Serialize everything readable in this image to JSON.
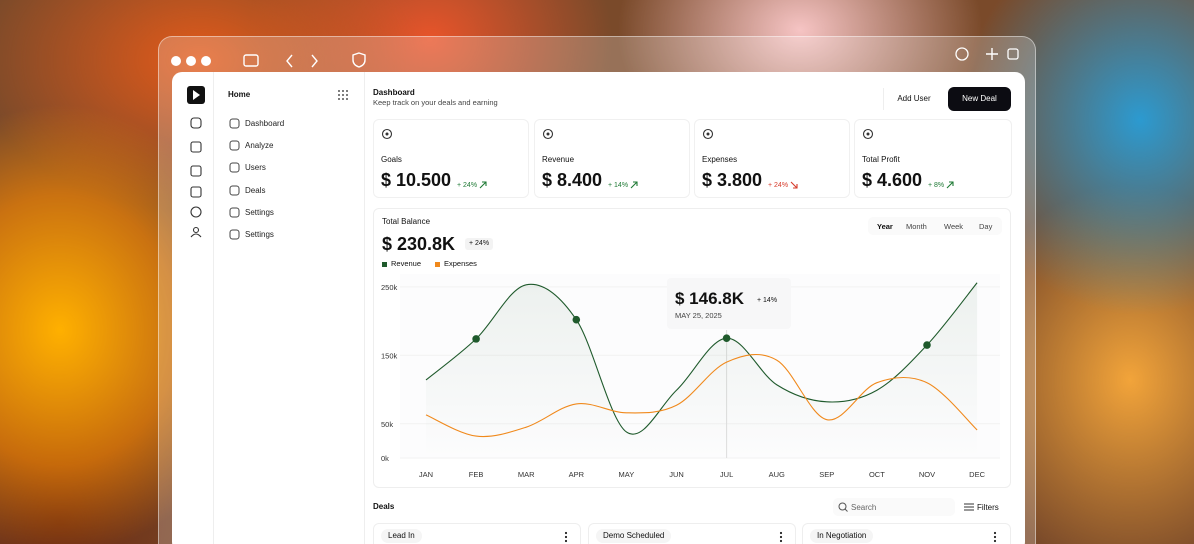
{
  "sidebar": {
    "title": "Home",
    "nav": [
      "Dashboard",
      "Analyze",
      "Users",
      "Deals",
      "Settings",
      "Settings"
    ]
  },
  "header": {
    "title": "Dashboard",
    "subtitle": "Keep track on your deals and earning",
    "buttons": [
      "Add User",
      "New Deal"
    ]
  },
  "stats": [
    {
      "label": "Goals",
      "value": "$ 10.500",
      "change": "+ 24%"
    },
    {
      "label": "Revenue",
      "value": "$ 8.400",
      "change": "+ 14%"
    },
    {
      "label": "Expenses",
      "value": "$ 3.800",
      "change": "+ 24%"
    },
    {
      "label": "Total Profit",
      "value": "$ 4.600",
      "change": "+ 8%"
    }
  ],
  "chart_data": {
    "type": "line",
    "title": "Total Balance",
    "total": "$ 230.8K",
    "total_change": "+ 24%",
    "periods": [
      "Year",
      "Month",
      "Week",
      "Day"
    ],
    "categories": [
      "JAN",
      "FEB",
      "MAR",
      "APR",
      "MAY",
      "JUN",
      "JUL",
      "AUG",
      "SEP",
      "OCT",
      "NOV",
      "DEC"
    ],
    "series": [
      {
        "name": "Revenue",
        "color": "#1f5a2c",
        "values": [
          114,
          174,
          253,
          202,
          38,
          99,
          175,
          107,
          82,
          99,
          165,
          256
        ]
      },
      {
        "name": "Expenses",
        "color": "#f0891c",
        "values": [
          63,
          32,
          45,
          79,
          66,
          77,
          140,
          143,
          56,
          110,
          110,
          41
        ]
      }
    ],
    "ylim": [
      0,
      260
    ],
    "yticks": [
      {
        "value": 0,
        "label": "0k"
      },
      {
        "value": 50,
        "label": "50k"
      },
      {
        "value": 150,
        "label": "150k"
      },
      {
        "value": 250,
        "label": "250k"
      }
    ],
    "grid": true,
    "tooltip": {
      "value": "$ 146.8K",
      "change": "+ 14%",
      "date": "MAY 25, 2025"
    }
  },
  "deals": {
    "title": "Deals",
    "search_placeholder": "Search",
    "filter": "Filters",
    "columns": [
      "Lead In",
      "Demo Scheduled",
      "In Negotiation"
    ]
  }
}
